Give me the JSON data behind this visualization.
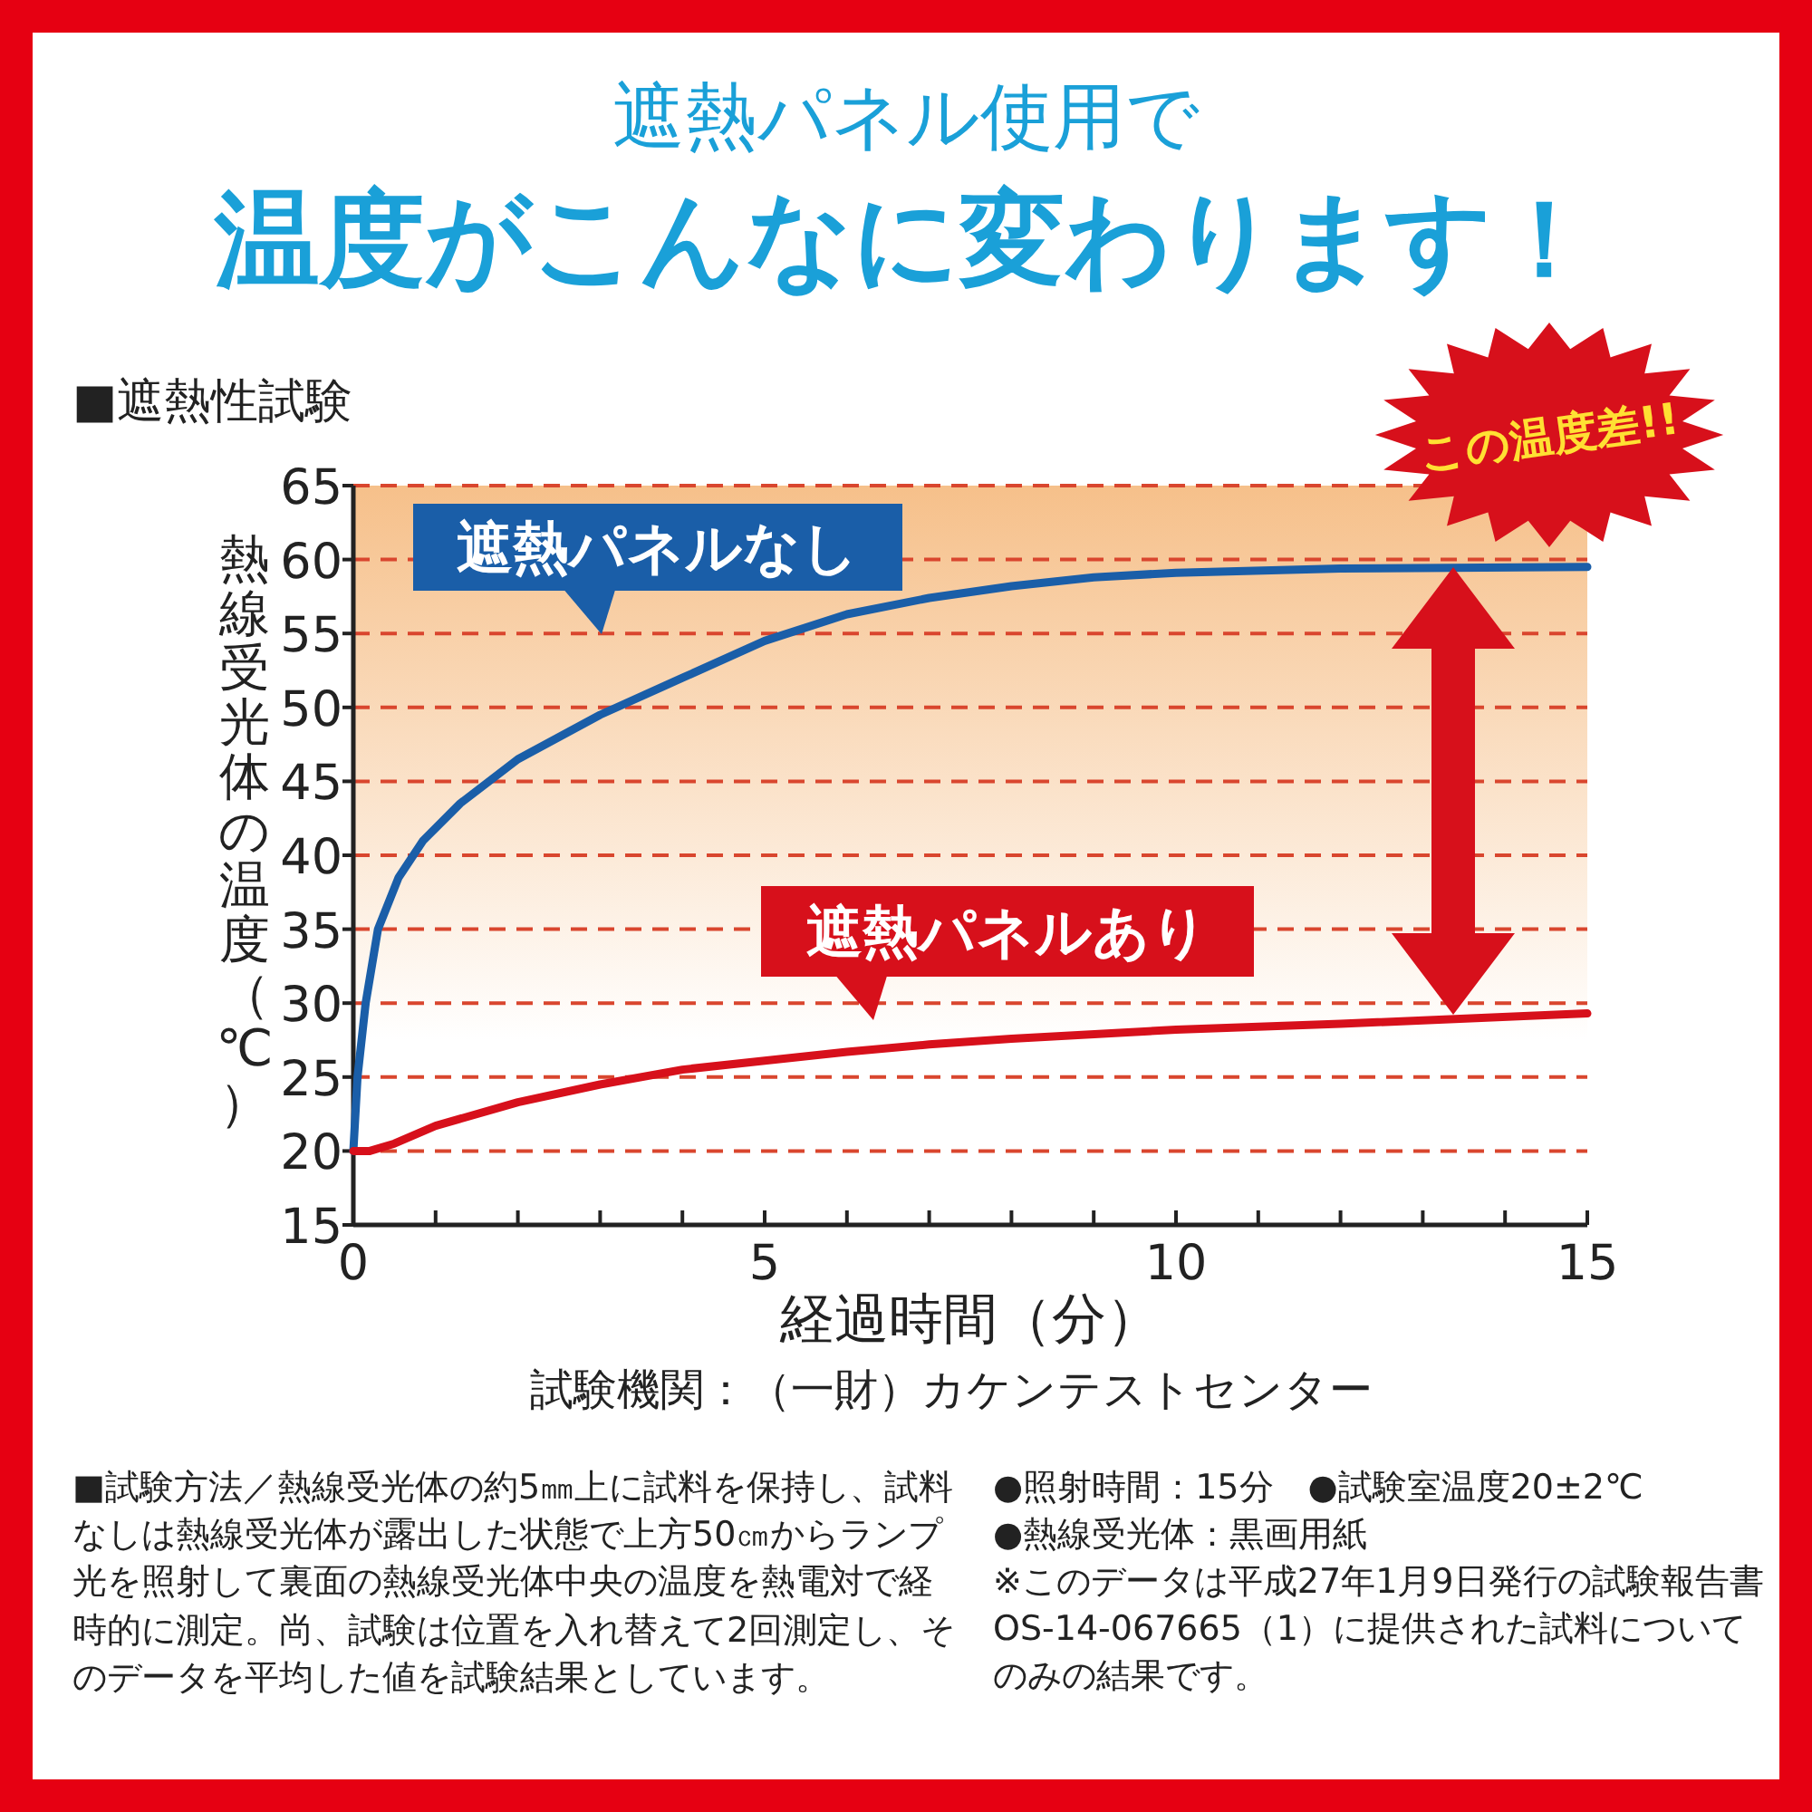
{
  "chart_data": {
    "type": "line",
    "title": "遮熱パネル使用で",
    "subtitle": "温度がこんなに変わります！",
    "xlabel": "経過時間（分）",
    "ylabel": "熱線受光体の温度（℃）",
    "xlim": [
      0,
      15
    ],
    "ylim": [
      15,
      65
    ],
    "xticks": [
      0,
      {
        "value": 1,
        "label": null
      },
      {
        "value": 2,
        "label": null
      },
      {
        "value": 3,
        "label": null
      },
      {
        "value": 4,
        "label": null
      },
      5,
      {
        "value": 6,
        "label": null
      },
      {
        "value": 7,
        "label": null
      },
      {
        "value": 8,
        "label": null
      },
      {
        "value": 9,
        "label": null
      },
      10,
      {
        "value": 11,
        "label": null
      },
      {
        "value": 12,
        "label": null
      },
      {
        "value": 13,
        "label": null
      },
      {
        "value": 14,
        "label": null
      },
      15
    ],
    "yticks": [
      15,
      20,
      25,
      30,
      35,
      40,
      45,
      50,
      55,
      60,
      65
    ],
    "grid": "y",
    "legend": false,
    "marker": "none",
    "line_style": "solid",
    "series": [
      {
        "name": "遮熱パネルなし",
        "color": "#1a5ea8",
        "x": [
          0,
          0.05,
          0.15,
          0.3,
          0.55,
          0.85,
          1.3,
          2,
          3,
          4,
          5,
          6,
          7,
          8,
          9,
          10,
          12,
          15
        ],
        "values": [
          20,
          25,
          30,
          35,
          38.5,
          41,
          43.5,
          46.5,
          49.5,
          52,
          54.5,
          56.3,
          57.4,
          58.2,
          58.8,
          59.1,
          59.4,
          59.5
        ]
      },
      {
        "name": "遮熱パネルあり",
        "color": "#d7101b",
        "x": [
          0,
          0.2,
          0.5,
          1,
          2,
          3,
          4,
          5,
          6,
          7,
          8,
          10,
          12,
          15
        ],
        "values": [
          20,
          20,
          20.5,
          21.7,
          23.3,
          24.5,
          25.5,
          26.1,
          26.7,
          27.2,
          27.6,
          28.2,
          28.6,
          29.3
        ]
      }
    ],
    "annotations": [
      "■遮熱性試験",
      "この温度差!!",
      "試験機関：（一財）カケンテストセンター",
      "■試験方法／熱線受光体の約5㎜上に試料を保持し、試料なしは熱線受光体が露出した状態で上方50㎝からランプ光を照射して裏面の熱線受光体中央の温度を熱電対で経時的に測定。尚、試験は位置を入れ替えて2回測定し、そのデータを平均した値を試験結果としています。",
      "●照射時間：15分　●試験室温度20±2℃",
      "●熱線受光体：黒画用紙",
      "※このデータは平成27年1月9日発行の試験報告書OS-14-067665（1）に提供された試料についてのみの結果です。"
    ]
  }
}
